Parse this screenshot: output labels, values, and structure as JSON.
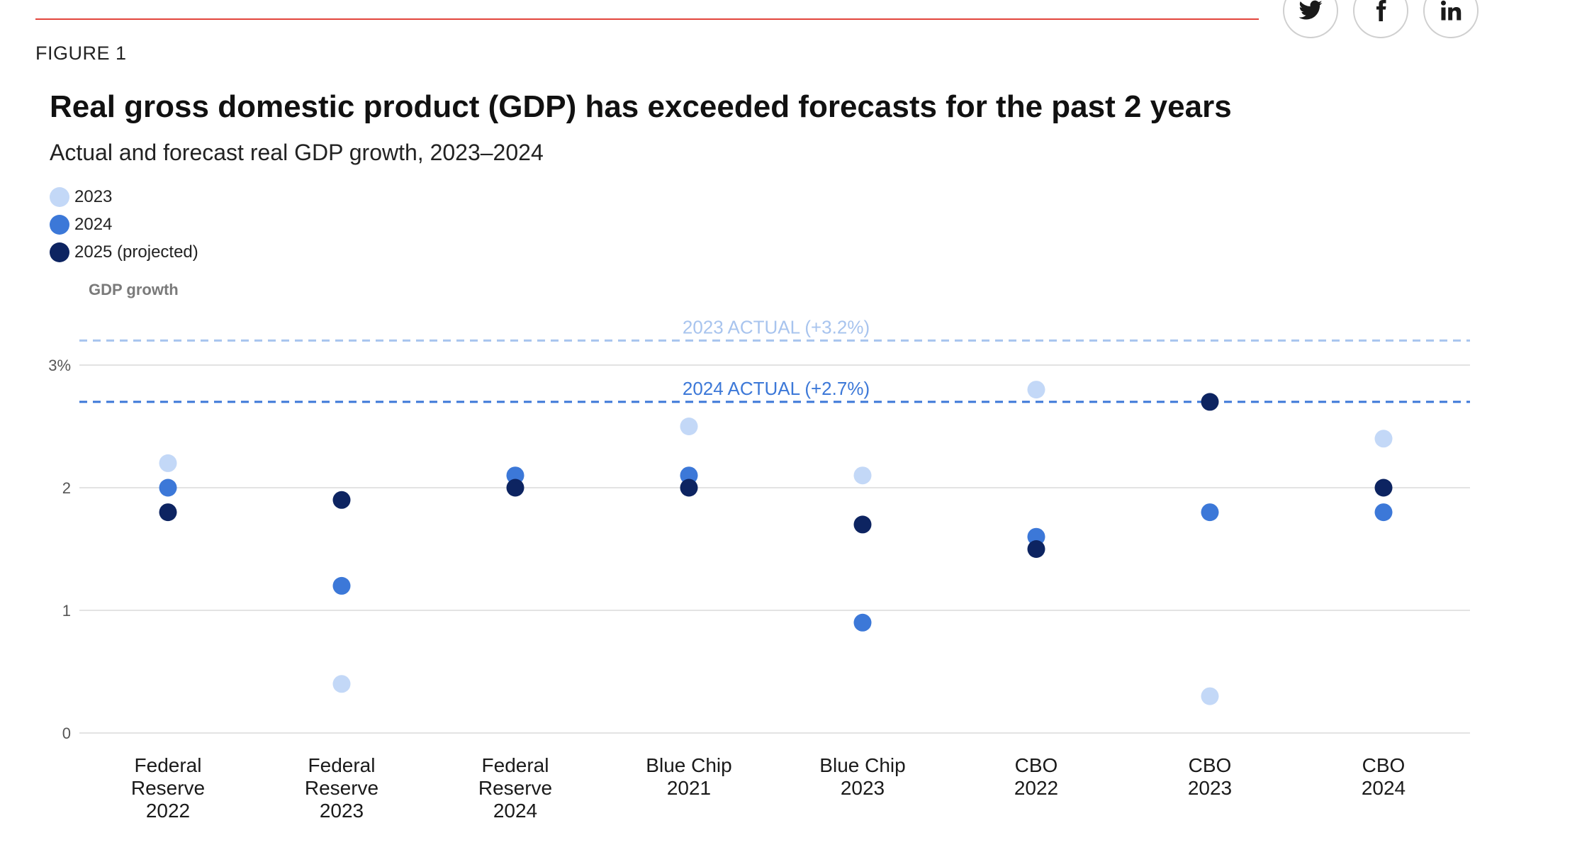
{
  "figure_label": "FIGURE 1",
  "share": {
    "twitter_icon": "twitter-icon",
    "facebook_icon": "facebook-icon",
    "linkedin_icon": "linkedin-icon"
  },
  "colors": {
    "s2023": "#c3d8f7",
    "s2024": "#3c78d8",
    "s2025": "#0d2461",
    "actual2023": "#a8c4ee",
    "actual2024": "#3c78d8",
    "rule": "#e2453c",
    "grid": "#e3e3e3"
  },
  "chart_data": {
    "type": "scatter",
    "title": "Real gross domestic product (GDP) has exceeded forecasts for the past 2 years",
    "subtitle": "Actual and forecast real GDP growth, 2023–2024",
    "ylabel": "GDP growth",
    "ylim": [
      0,
      3.3
    ],
    "yticks": [
      0,
      1,
      2,
      3
    ],
    "ytick_labels": [
      "0",
      "1",
      "2",
      "3%"
    ],
    "grid": true,
    "legend_position": "top-left",
    "categories": [
      [
        "Federal",
        "Reserve",
        "2022"
      ],
      [
        "Federal",
        "Reserve",
        "2023"
      ],
      [
        "Federal",
        "Reserve",
        "2024"
      ],
      [
        "Blue Chip",
        "2021"
      ],
      [
        "Blue Chip",
        "2023"
      ],
      [
        "CBO",
        "2022"
      ],
      [
        "CBO",
        "2023"
      ],
      [
        "CBO",
        "2024"
      ]
    ],
    "series": [
      {
        "name": "2023",
        "color_key": "s2023",
        "values": [
          2.2,
          0.4,
          null,
          2.5,
          2.1,
          2.8,
          0.3,
          2.4
        ]
      },
      {
        "name": "2024",
        "color_key": "s2024",
        "values": [
          2.0,
          1.2,
          2.1,
          2.1,
          0.9,
          1.6,
          1.8,
          1.8
        ]
      },
      {
        "name": "2025 (projected)",
        "color_key": "s2025",
        "values": [
          1.8,
          1.9,
          2.0,
          2.0,
          1.7,
          1.5,
          2.7,
          2.0
        ]
      }
    ],
    "reference_lines": [
      {
        "label": "2023 ACTUAL (+3.2%)",
        "value": 3.2,
        "color_key": "actual2023"
      },
      {
        "label": "2024 ACTUAL (+2.7%)",
        "value": 2.7,
        "color_key": "actual2024"
      }
    ]
  }
}
